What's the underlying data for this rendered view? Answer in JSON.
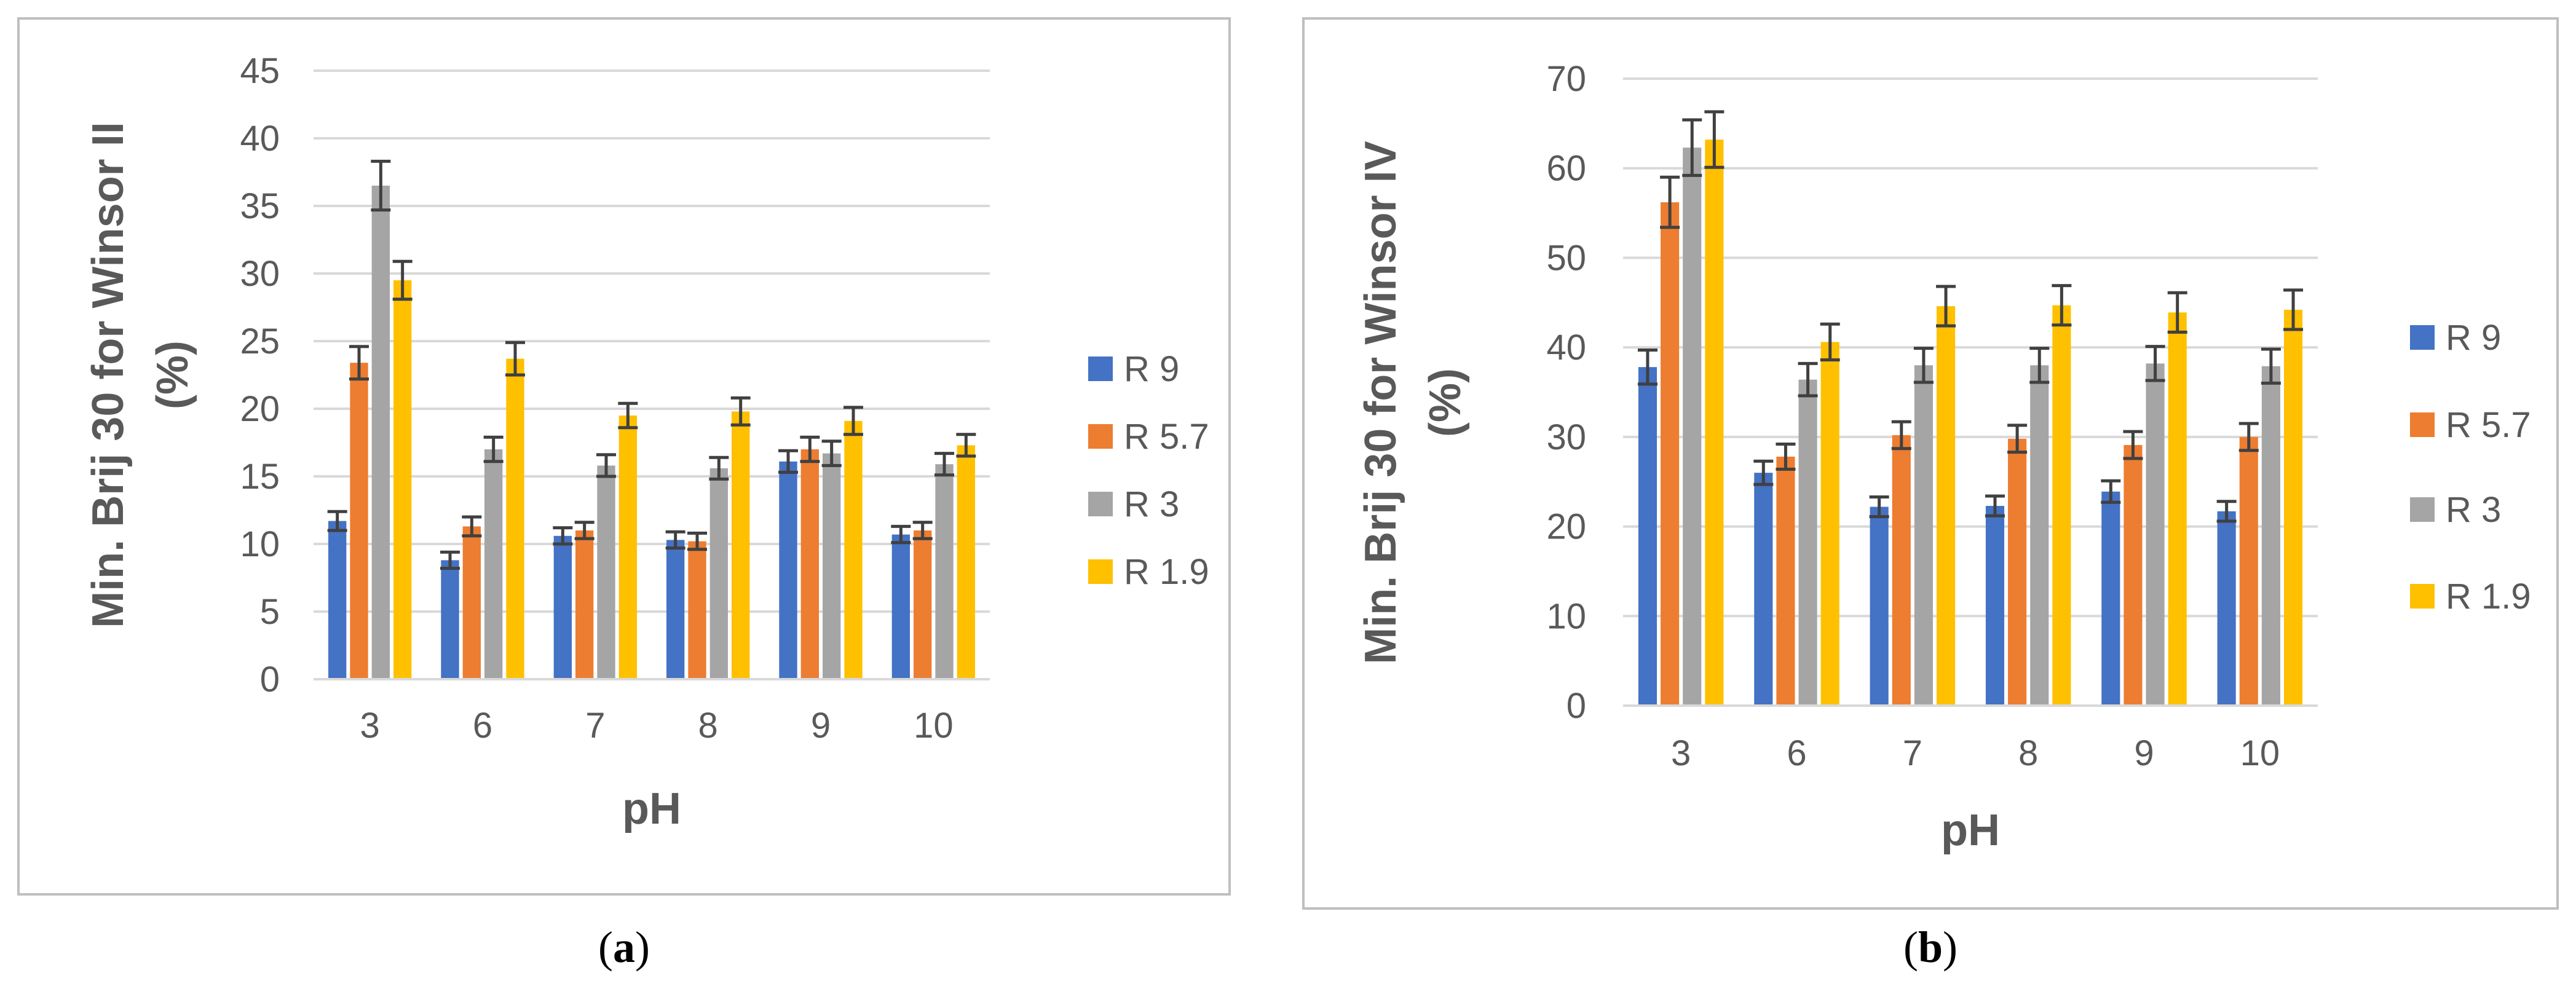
{
  "colors": {
    "R 9": "#4472C4",
    "R 5.7": "#ED7D31",
    "R 3": "#A5A5A5",
    "R 1.9": "#FFC000",
    "grid": "#D9D9D9",
    "axis_text": "#595959",
    "frame": "#BFBFBF",
    "errorbar": "#404040"
  },
  "panels": [
    {
      "caption_letter": "a",
      "chart_data": {
        "type": "bar",
        "title": "",
        "xlabel": "pH",
        "ylabel": "Min. Brij 30 for Winsor II (%)",
        "ylabel_lines": [
          "Min. Brij 30 for Winsor II",
          "(%)"
        ],
        "ylim": [
          0,
          45
        ],
        "yticks": [
          0,
          5,
          10,
          15,
          20,
          25,
          30,
          35,
          40,
          45
        ],
        "grid": true,
        "legend": "right",
        "categories": [
          "3",
          "6",
          "7",
          "8",
          "9",
          "10"
        ],
        "series": [
          {
            "name": "R 9",
            "values": [
              11.7,
              8.8,
              10.6,
              10.3,
              16.1,
              10.7
            ],
            "errors": [
              0.7,
              0.6,
              0.6,
              0.6,
              0.8,
              0.6
            ]
          },
          {
            "name": "R 5.7",
            "values": [
              23.4,
              11.3,
              11.0,
              10.2,
              17.0,
              11.0
            ],
            "errors": [
              1.2,
              0.7,
              0.6,
              0.6,
              0.9,
              0.6
            ]
          },
          {
            "name": "R 3",
            "values": [
              36.5,
              17.0,
              15.8,
              15.6,
              16.7,
              15.9
            ],
            "errors": [
              1.8,
              0.9,
              0.8,
              0.8,
              0.9,
              0.8
            ]
          },
          {
            "name": "R 1.9",
            "values": [
              29.5,
              23.7,
              19.5,
              19.8,
              19.1,
              17.3
            ],
            "errors": [
              1.4,
              1.2,
              0.9,
              1.0,
              1.0,
              0.8
            ]
          }
        ]
      }
    },
    {
      "caption_letter": "b",
      "chart_data": {
        "type": "bar",
        "title": "",
        "xlabel": "pH",
        "ylabel": "Min. Brij 30 for Winsor IV (%)",
        "ylabel_lines": [
          "Min. Brij 30 for Winsor IV",
          "(%)"
        ],
        "ylim": [
          0,
          70
        ],
        "yticks": [
          0,
          10,
          20,
          30,
          40,
          50,
          60,
          70
        ],
        "grid": true,
        "legend": "right",
        "categories": [
          "3",
          "6",
          "7",
          "8",
          "9",
          "10"
        ],
        "series": [
          {
            "name": "R 9",
            "values": [
              37.8,
              26.0,
              22.2,
              22.3,
              23.9,
              21.7
            ],
            "errors": [
              1.9,
              1.3,
              1.1,
              1.1,
              1.2,
              1.1
            ]
          },
          {
            "name": "R 5.7",
            "values": [
              56.2,
              27.8,
              30.2,
              29.8,
              29.1,
              30.0
            ],
            "errors": [
              2.8,
              1.4,
              1.5,
              1.5,
              1.5,
              1.5
            ]
          },
          {
            "name": "R 3",
            "values": [
              62.3,
              36.4,
              38.0,
              38.0,
              38.2,
              37.9
            ],
            "errors": [
              3.1,
              1.8,
              1.9,
              1.9,
              1.9,
              1.9
            ]
          },
          {
            "name": "R 1.9",
            "values": [
              63.2,
              40.6,
              44.6,
              44.7,
              43.9,
              44.2
            ],
            "errors": [
              3.1,
              2.0,
              2.2,
              2.2,
              2.2,
              2.2
            ]
          }
        ]
      }
    }
  ]
}
